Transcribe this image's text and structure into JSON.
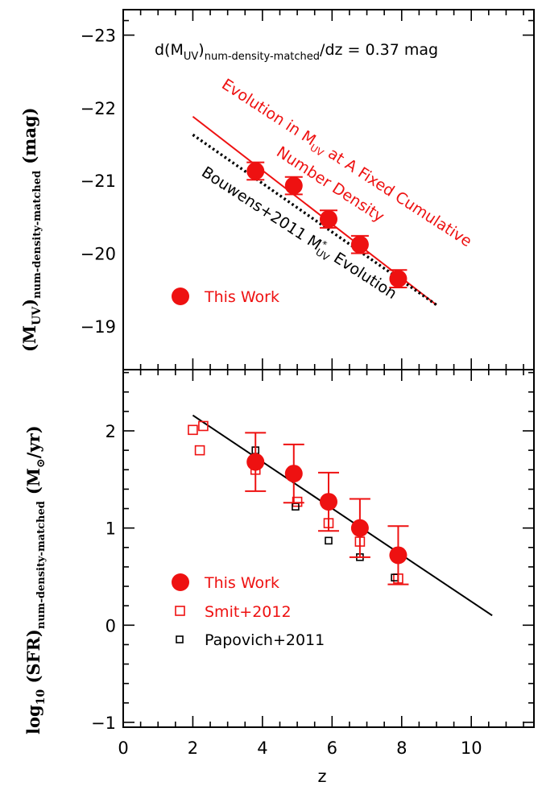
{
  "colors": {
    "red": "#ee1111",
    "black": "#000000",
    "background": "#ffffff"
  },
  "chart_data": [
    {
      "type": "scatter",
      "panel": "top",
      "xlabel": "",
      "ylabel": {
        "main": "(M",
        "sub_uv": "UV",
        "close": ")",
        "sub": "num-density-matched",
        "unit": "(mag)"
      },
      "xlim": [
        0,
        11.8
      ],
      "ylim": [
        -18.4,
        -23.35
      ],
      "y_inverted": true,
      "yticks": [
        -19,
        -20,
        -21,
        -22,
        -23
      ],
      "ytick_labels": [
        "−19",
        "−20",
        "−21",
        "−22",
        "−23"
      ],
      "annotation": {
        "pre": "d(M",
        "sub_uv": "UV",
        "mid": ")",
        "sub": "num-density-matched",
        "post": "/dz  =  0.37  mag"
      },
      "series": [
        {
          "name": "This Work",
          "marker": "filled-circle",
          "color": "#ee1111",
          "x": [
            3.8,
            4.9,
            5.9,
            6.8,
            7.9
          ],
          "y": [
            -21.13,
            -20.93,
            -20.47,
            -20.12,
            -19.65
          ],
          "yerr": [
            0.12,
            0.12,
            0.12,
            0.12,
            0.12
          ]
        },
        {
          "name": "Evolution in M_UV at A Fixed Cumulative Number Density",
          "marker": "line",
          "color": "#ee1111",
          "x": [
            2.0,
            9.0
          ],
          "y": [
            -21.88,
            -19.29
          ]
        },
        {
          "name": "Bouwens+2011 M*_UV Evolution",
          "marker": "dotted-line",
          "color": "#000000",
          "x": [
            2.0,
            9.0
          ],
          "y": [
            -21.63,
            -19.29
          ]
        }
      ],
      "line_labels": {
        "red_line": {
          "line1_a": "Evolution in M",
          "line1_sub": "UV",
          "line1_b": " at A Fixed Cumulative",
          "line2": "Number Density"
        },
        "dotted_line": {
          "pre": "Bouwens+2011 M",
          "sup": "*",
          "sub": "UV",
          "post": " Evolution"
        }
      },
      "legend": {
        "position": "bottom-left",
        "entries": [
          {
            "label": "This Work",
            "marker": "filled-circle",
            "color": "#ee1111"
          }
        ]
      }
    },
    {
      "type": "scatter",
      "panel": "bottom",
      "xlabel": "z",
      "ylabel": {
        "log": "log",
        "log_sub": "10",
        "main": " (SFR)",
        "sub": "num-density-matched",
        "unit": "(M",
        "unit_sub": "⊙",
        "unit_post": "/yr)"
      },
      "xlim": [
        0,
        11.8
      ],
      "ylim": [
        -1.05,
        2.63
      ],
      "xticks": [
        0,
        2,
        4,
        6,
        8,
        10
      ],
      "xtick_labels": [
        "0",
        "2",
        "4",
        "6",
        "8",
        "10"
      ],
      "yticks": [
        -1,
        0,
        1,
        2
      ],
      "ytick_labels": [
        "−1",
        "0",
        "1",
        "2"
      ],
      "series": [
        {
          "name": "This Work",
          "marker": "filled-circle",
          "color": "#ee1111",
          "x": [
            3.8,
            4.9,
            5.9,
            6.8,
            7.9
          ],
          "y": [
            1.68,
            1.56,
            1.27,
            1.0,
            0.72
          ],
          "yerr": [
            0.3,
            0.3,
            0.3,
            0.3,
            0.3
          ]
        },
        {
          "name": "Smit+2012",
          "marker": "open-square",
          "color": "#ee1111",
          "x": [
            2.0,
            2.2,
            2.3,
            3.8,
            5.0,
            5.9,
            6.8,
            7.9
          ],
          "y": [
            2.01,
            1.8,
            2.05,
            1.6,
            1.27,
            1.05,
            0.86,
            0.48
          ]
        },
        {
          "name": "Papovich+2011",
          "marker": "open-square-small",
          "color": "#000000",
          "x": [
            3.8,
            4.95,
            5.9,
            6.8,
            7.8
          ],
          "y": [
            1.8,
            1.22,
            0.87,
            0.7,
            0.49
          ]
        },
        {
          "name": "",
          "marker": "line",
          "color": "#000000",
          "x": [
            2.0,
            10.6
          ],
          "y": [
            2.16,
            0.1
          ]
        }
      ],
      "legend": {
        "position": "bottom-left",
        "entries": [
          {
            "label": "This Work",
            "marker": "filled-circle",
            "color": "#ee1111"
          },
          {
            "label": "Smit+2012",
            "marker": "open-square",
            "color": "#ee1111"
          },
          {
            "label": "Papovich+2011",
            "marker": "open-square-small",
            "color": "#000000"
          }
        ]
      }
    }
  ]
}
